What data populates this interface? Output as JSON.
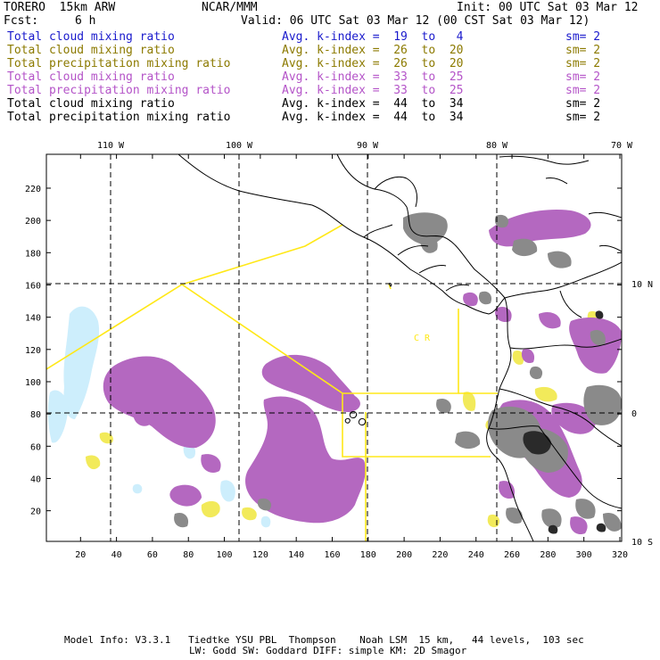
{
  "header": {
    "model": "TORERO  15km ARW",
    "org": "NCAR/MMM",
    "init": "Init: 00 UTC Sat 03 Mar 12",
    "fcst_label": "Fcst:",
    "fcst_value": "6 h",
    "valid": "Valid: 06 UTC Sat 03 Mar 12 (00 CST Sat 03 Mar 12)"
  },
  "legend": [
    {
      "field": "Total cloud mixing ratio",
      "kindex": "Avg. k-index =  19  to   4",
      "sm": "sm= 2",
      "color": "#1a1acc"
    },
    {
      "field": "Total cloud mixing ratio",
      "kindex": "Avg. k-index =  26  to  20",
      "sm": "sm= 2",
      "color": "#8c7a00"
    },
    {
      "field": "Total precipitation mixing ratio",
      "kindex": "Avg. k-index =  26  to  20",
      "sm": "sm= 2",
      "color": "#8c7a00"
    },
    {
      "field": "Total cloud mixing ratio",
      "kindex": "Avg. k-index =  33  to  25",
      "sm": "sm= 2",
      "color": "#b454c8"
    },
    {
      "field": "Total precipitation mixing ratio",
      "kindex": "Avg. k-index =  33  to  25",
      "sm": "sm= 2",
      "color": "#b454c8"
    },
    {
      "field": "Total cloud mixing ratio",
      "kindex": "Avg. k-index =  44  to  34",
      "sm": "sm= 2",
      "color": "#000000"
    },
    {
      "field": "Total precipitation mixing ratio",
      "kindex": "Avg. k-index =  44  to  34",
      "sm": "sm= 2",
      "color": "#000000"
    }
  ],
  "map": {
    "top_lon_labels": [
      "110 W",
      "100 W",
      "90 W",
      "80 W",
      "70 W"
    ],
    "right_lat_labels": [
      "10 N",
      "0",
      "10 S"
    ],
    "y_ticks": [
      "220",
      "200",
      "180",
      "160",
      "140",
      "120",
      "100",
      "80",
      "60",
      "40",
      "20"
    ],
    "x_ticks": [
      "20",
      "40",
      "60",
      "80",
      "100",
      "120",
      "140",
      "160",
      "180",
      "200",
      "220",
      "240",
      "260",
      "280",
      "300",
      "320"
    ],
    "region_labels": [
      "C R"
    ],
    "colors": {
      "cloud_low": "#cdeefc",
      "cloud_mid": "#f2ea5a",
      "cloud_high": "#b468c0",
      "cloud_top": "#8a8a8a",
      "cloud_core": "#2a2a2a",
      "coast": "#000000",
      "boundary": "#ffe818",
      "grid": "#000000"
    }
  },
  "footer": {
    "line1": "Model Info: V3.3.1   Tiedtke YSU PBL  Thompson    Noah LSM  15 km,   44 levels,  103 sec",
    "line2": "LW: Godd SW: Goddard DIFF: simple KM: 2D Smagor"
  }
}
